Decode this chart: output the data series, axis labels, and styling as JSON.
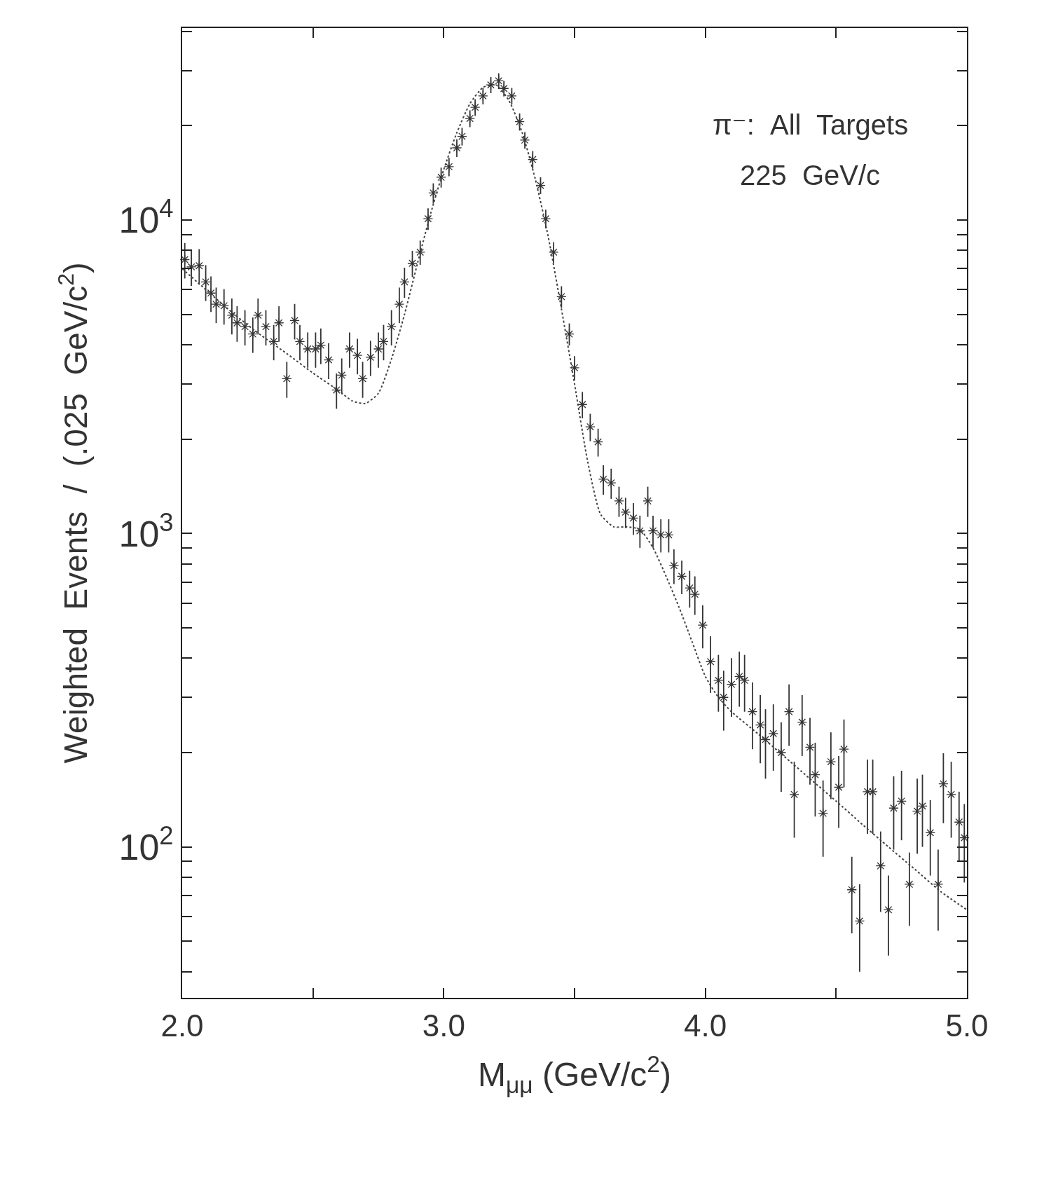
{
  "chart_data": {
    "type": "scatter",
    "xlabel": "M$_{μμ}$ (GeV/c$^{2}$)",
    "ylabel": "Weighted  Events  /  (.025  GeV/c$^{2}$)",
    "annotations": [
      "π⁻:  All  Targets",
      "225  GeV/c"
    ],
    "log": "y",
    "grid": false,
    "xlim": [
      2.0,
      5.0
    ],
    "ylim": [
      33,
      41000
    ],
    "xticks": [
      {
        "value": 2,
        "label": "2.0"
      },
      {
        "value": 2.5,
        "label": null
      },
      {
        "value": 3,
        "label": "3.0"
      },
      {
        "value": 3.5,
        "label": null
      },
      {
        "value": 4,
        "label": "4.0"
      },
      {
        "value": 4.5,
        "label": null
      },
      {
        "value": 5,
        "label": "5.0"
      }
    ],
    "yticks": [
      {
        "value": 40,
        "label": null
      },
      {
        "value": 50,
        "label": null
      },
      {
        "value": 60,
        "label": null
      },
      {
        "value": 70,
        "label": null
      },
      {
        "value": 80,
        "label": null
      },
      {
        "value": 90,
        "label": null
      },
      {
        "value": 100,
        "label": "10$^{2}$"
      },
      {
        "value": 200,
        "label": null
      },
      {
        "value": 300,
        "label": null
      },
      {
        "value": 400,
        "label": null
      },
      {
        "value": 500,
        "label": null
      },
      {
        "value": 600,
        "label": null
      },
      {
        "value": 700,
        "label": null
      },
      {
        "value": 800,
        "label": null
      },
      {
        "value": 900,
        "label": null
      },
      {
        "value": 1000,
        "label": "10$^{3}$"
      },
      {
        "value": 2000,
        "label": null
      },
      {
        "value": 3000,
        "label": null
      },
      {
        "value": 4000,
        "label": null
      },
      {
        "value": 5000,
        "label": null
      },
      {
        "value": 6000,
        "label": null
      },
      {
        "value": 7000,
        "label": null
      },
      {
        "value": 8000,
        "label": null
      },
      {
        "value": 9000,
        "label": null
      },
      {
        "value": 10000,
        "label": "10$^{4}$"
      },
      {
        "value": 20000,
        "label": null
      },
      {
        "value": 30000,
        "label": null
      },
      {
        "value": 40000,
        "label": null
      }
    ],
    "series": [
      {
        "marker": "cross",
        "color": "#333333",
        "x": [
          2.01,
          2.035,
          2.065,
          2.09,
          2.11,
          2.13,
          2.16,
          2.19,
          2.21,
          2.24,
          2.27,
          2.29,
          2.32,
          2.35,
          2.37,
          2.4,
          2.43,
          2.45,
          2.48,
          2.51,
          2.53,
          2.56,
          2.59,
          2.61,
          2.64,
          2.67,
          2.69,
          2.72,
          2.75,
          2.77,
          2.8,
          2.83,
          2.85,
          2.88,
          2.91,
          2.94,
          2.96,
          2.99,
          3.02,
          3.05,
          3.07,
          3.1,
          3.12,
          3.15,
          3.18,
          3.21,
          3.23,
          3.26,
          3.29,
          3.31,
          3.34,
          3.37,
          3.39,
          3.42,
          3.45,
          3.48,
          3.5,
          3.53,
          3.56,
          3.59,
          3.61,
          3.64,
          3.67,
          3.695,
          3.725,
          3.75,
          3.78,
          3.8,
          3.83,
          3.86,
          3.88,
          3.91,
          3.94,
          3.96,
          3.99,
          4.02,
          4.05,
          4.07,
          4.1,
          4.13,
          4.15,
          4.18,
          4.21,
          4.23,
          4.26,
          4.29,
          4.32,
          4.34,
          4.37,
          4.4,
          4.42,
          4.45,
          4.48,
          4.51,
          4.53,
          4.56,
          4.59,
          4.62,
          4.64,
          4.67,
          4.7,
          4.72,
          4.75,
          4.78,
          4.81,
          4.83,
          4.86,
          4.89,
          4.91,
          4.94,
          4.97,
          4.99
        ],
        "values": [
          7480,
          7090,
          7150,
          6350,
          5850,
          5390,
          5330,
          4970,
          4700,
          4570,
          4330,
          4970,
          4570,
          4100,
          4700,
          3120,
          4780,
          4100,
          3880,
          3880,
          3990,
          3580,
          2870,
          3200,
          3880,
          3700,
          3120,
          3650,
          3880,
          4100,
          4570,
          5390,
          6350,
          7280,
          7900,
          10100,
          12200,
          13700,
          14800,
          17000,
          18500,
          21100,
          22900,
          24900,
          27000,
          27800,
          26300,
          24900,
          20600,
          18000,
          15600,
          12900,
          10100,
          7900,
          5700,
          4330,
          3380,
          2580,
          2190,
          1960,
          1490,
          1450,
          1270,
          1170,
          1120,
          1020,
          1270,
          1020,
          990,
          990,
          790,
          730,
          670,
          640,
          510,
          390,
          340,
          300,
          330,
          350,
          340,
          270,
          245,
          220,
          230,
          200,
          270,
          147,
          250,
          208,
          170,
          128,
          187,
          155,
          205,
          73,
          58,
          150,
          150,
          87,
          63,
          133,
          140,
          76,
          130,
          135,
          111,
          76,
          159,
          147,
          120,
          107
        ],
        "errors": [
          970,
          920,
          930,
          830,
          760,
          700,
          690,
          650,
          610,
          590,
          560,
          650,
          590,
          530,
          610,
          410,
          620,
          530,
          500,
          500,
          520,
          470,
          370,
          420,
          500,
          480,
          410,
          470,
          500,
          530,
          590,
          700,
          700,
          700,
          700,
          800,
          900,
          1000,
          1000,
          1100,
          1200,
          1300,
          1400,
          1500,
          1600,
          1600,
          1500,
          1500,
          1300,
          1100,
          1000,
          800,
          700,
          600,
          450,
          350,
          300,
          250,
          220,
          200,
          160,
          160,
          140,
          130,
          130,
          120,
          140,
          120,
          120,
          120,
          100,
          90,
          90,
          90,
          80,
          80,
          70,
          65,
          70,
          70,
          70,
          65,
          60,
          55,
          55,
          50,
          60,
          40,
          55,
          50,
          45,
          35,
          45,
          40,
          50,
          20,
          18,
          40,
          40,
          25,
          18,
          35,
          35,
          20,
          35,
          35,
          30,
          22,
          40,
          40,
          30,
          30
        ]
      },
      {
        "type": "line",
        "line_style": "dotted",
        "marker": "none",
        "color": "#444444",
        "x": [
          2.0,
          2.1,
          2.2,
          2.3,
          2.4,
          2.5,
          2.6,
          2.65,
          2.7,
          2.75,
          2.8,
          2.85,
          2.9,
          2.95,
          3.0,
          3.05,
          3.1,
          3.15,
          3.2,
          3.25,
          3.3,
          3.35,
          3.4,
          3.45,
          3.5,
          3.55,
          3.6,
          3.65,
          3.7,
          3.75,
          3.8,
          3.85,
          3.9,
          3.95,
          4.0,
          4.05,
          4.1,
          4.2,
          4.3,
          4.4,
          4.5,
          4.6,
          4.7,
          4.8,
          4.9,
          5.0
        ],
        "values": [
          7000,
          5900,
          5000,
          4300,
          3750,
          3250,
          2850,
          2650,
          2600,
          2800,
          3600,
          5000,
          7300,
          10500,
          14500,
          19000,
          23500,
          26500,
          27000,
          24000,
          19000,
          13500,
          8800,
          5200,
          3000,
          1700,
          1150,
          1050,
          1050,
          1030,
          900,
          730,
          580,
          450,
          350,
          300,
          270,
          230,
          195,
          165,
          140,
          118,
          100,
          85,
          72,
          63
        ]
      }
    ]
  }
}
